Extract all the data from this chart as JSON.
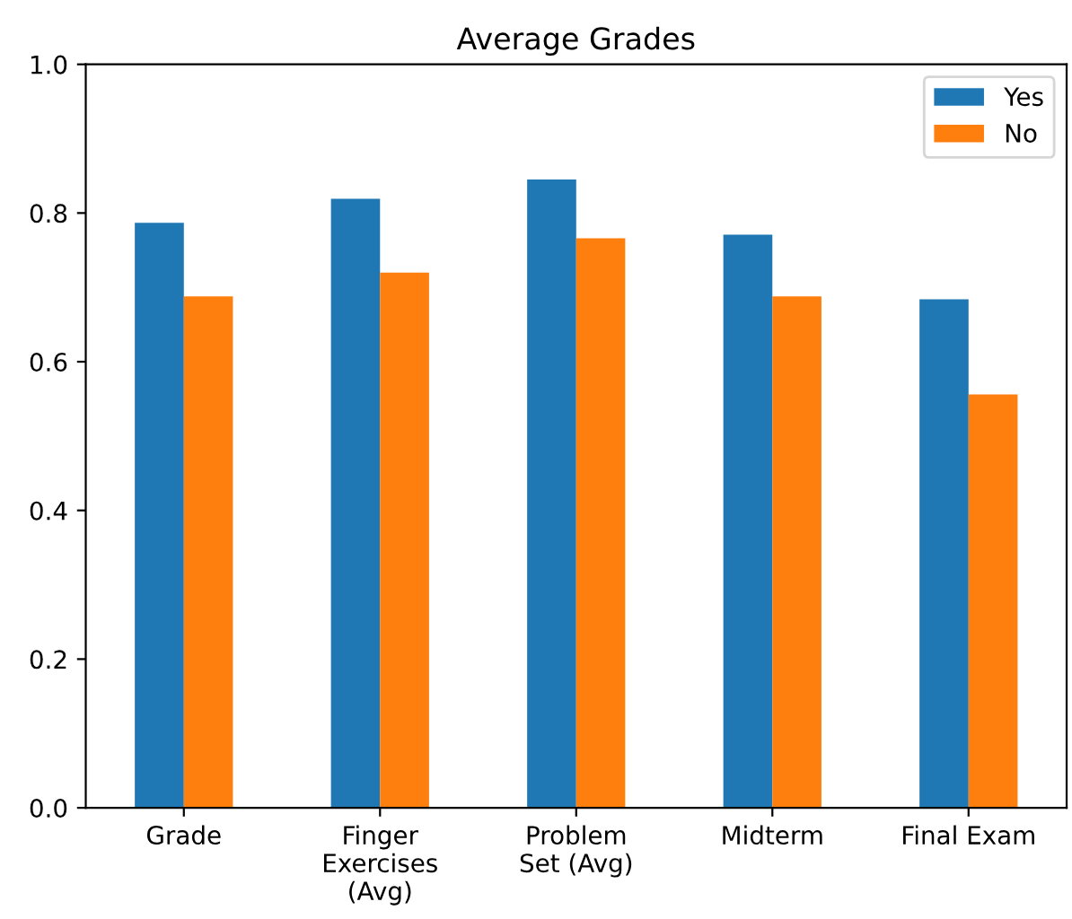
{
  "chart_data": {
    "type": "bar",
    "title": "Average Grades",
    "categories": [
      "Grade",
      "Finger\nExercises\n(Avg)",
      "Problem\nSet (Avg)",
      "Midterm",
      "Final Exam"
    ],
    "series": [
      {
        "name": "Yes",
        "color": "#1f77b4",
        "values": [
          0.787,
          0.819,
          0.845,
          0.771,
          0.684
        ]
      },
      {
        "name": "No",
        "color": "#ff7f0e",
        "values": [
          0.688,
          0.72,
          0.766,
          0.688,
          0.556
        ]
      }
    ],
    "ylim": [
      0,
      1
    ],
    "yticks": [
      {
        "value": 0,
        "label": "0.0"
      },
      0.2,
      0.4,
      0.6,
      0.8,
      {
        "value": 1,
        "label": "1.0"
      }
    ],
    "grid": false,
    "legend": "top right"
  }
}
